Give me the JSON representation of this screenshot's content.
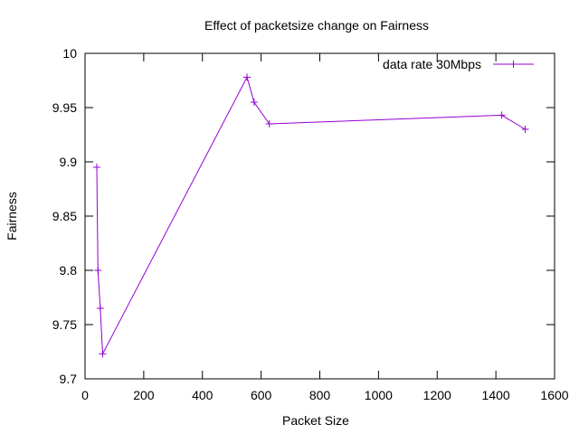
{
  "chart_data": {
    "type": "line",
    "title": "Effect of packetsize change on Fairness",
    "xlabel": "Packet Size",
    "ylabel": "Fairness",
    "xlim": [
      0,
      1600
    ],
    "ylim": [
      9.7,
      10.0
    ],
    "xticks": [
      "0",
      "200",
      "400",
      "600",
      "800",
      "1000",
      "1200",
      "1400",
      "1600"
    ],
    "yticks": [
      "9.7",
      "9.75",
      "9.8",
      "9.85",
      "9.9",
      "9.95",
      "10"
    ],
    "grid": false,
    "legend_position": "top-right",
    "series": [
      {
        "name": "data rate 30Mbps",
        "color": "#9400d3",
        "marker": "plus",
        "x": [
          40,
          44,
          52,
          60,
          552,
          576,
          628,
          1420,
          1500
        ],
        "y": [
          9.895,
          9.8,
          9.765,
          9.723,
          9.978,
          9.955,
          9.935,
          9.943,
          9.93
        ]
      }
    ]
  }
}
